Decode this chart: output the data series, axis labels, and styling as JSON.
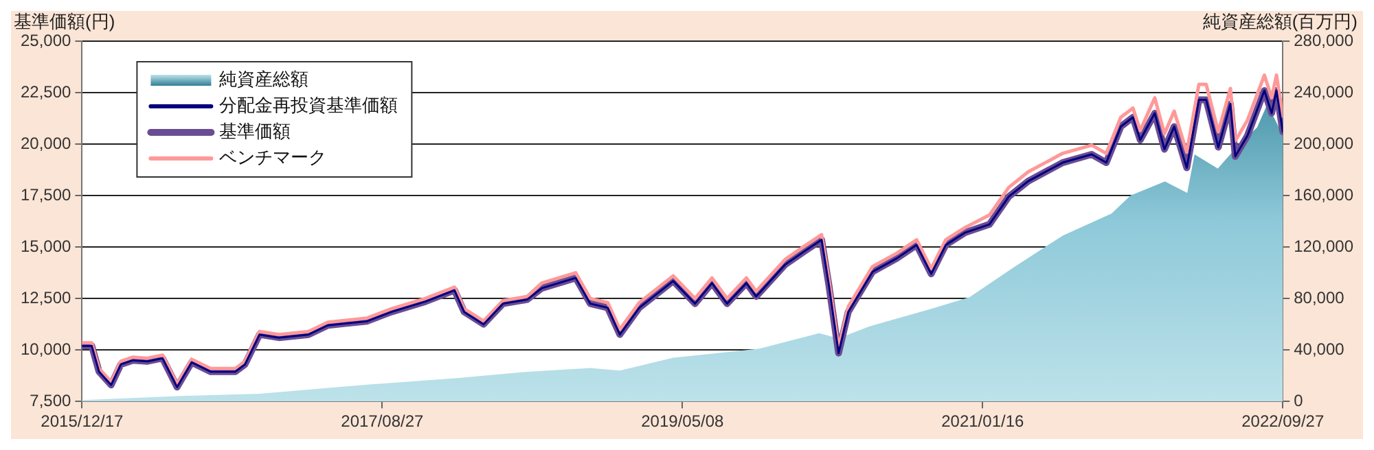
{
  "chart_data": {
    "type": "line",
    "ylabel": "基準価額(円)",
    "y2label": "純資産総額(百万円)",
    "xlim": [
      "2015-12-17",
      "2022-09-27"
    ],
    "xticks": [
      {
        "value": "2015-12-17",
        "label": "2015/12/17"
      },
      {
        "value": "2017-08-27",
        "label": "2017/08/27"
      },
      {
        "value": "2019-05-08",
        "label": "2019/05/08"
      },
      {
        "value": "2021-01-16",
        "label": "2021/01/16"
      },
      {
        "value": "2022-09-27",
        "label": "2022/09/27"
      }
    ],
    "ylim": [
      7500,
      25000
    ],
    "yticks": [
      {
        "value": 7500,
        "label": "7,500"
      },
      {
        "value": 10000,
        "label": "10,000"
      },
      {
        "value": 12500,
        "label": "12,500"
      },
      {
        "value": 15000,
        "label": "15,000"
      },
      {
        "value": 17500,
        "label": "17,500"
      },
      {
        "value": 20000,
        "label": "20,000"
      },
      {
        "value": 22500,
        "label": "22,500"
      },
      {
        "value": 25000,
        "label": "25,000"
      }
    ],
    "y2lim": [
      0,
      280000
    ],
    "y2ticks": [
      0,
      {
        "value": 40000,
        "label": "40,000"
      },
      {
        "value": 80000,
        "label": "80,000"
      },
      {
        "value": 120000,
        "label": "120,000"
      },
      {
        "value": 160000,
        "label": "160,000"
      },
      {
        "value": 200000,
        "label": "200,000"
      },
      {
        "value": 240000,
        "label": "240,000"
      },
      {
        "value": 280000,
        "label": "280,000"
      }
    ],
    "grid": "y",
    "legend": "top left",
    "series": [
      {
        "name": "純資産総額",
        "type": "area",
        "axis": "y2",
        "color": "#8ec9d9",
        "x": [
          "2015-12-17",
          "2016-06-21",
          "2016-12-17",
          "2017-07-27",
          "2018-01-23",
          "2018-06-22",
          "2018-10-30",
          "2018-12-30",
          "2019-04-19",
          "2019-10-14",
          "2020-02-14",
          "2020-03-25",
          "2020-05-25",
          "2020-10-02",
          "2020-12-20",
          "2021-03-20",
          "2021-07-01",
          "2021-10-09",
          "2021-11-17",
          "2022-01-27",
          "2022-03-14",
          "2022-03-29",
          "2022-05-16",
          "2022-06-27",
          "2022-08-05",
          "2022-08-26",
          "2022-09-19",
          "2022-09-27"
        ],
        "values": [
          1000,
          4000,
          6000,
          13000,
          18000,
          23000,
          26000,
          24000,
          34000,
          41000,
          53000,
          49000,
          58000,
          72000,
          81000,
          104000,
          129000,
          146000,
          160000,
          171000,
          162000,
          192000,
          181000,
          199000,
          213000,
          231000,
          213000,
          206000
        ]
      },
      {
        "name": "分配金再投資基準価額",
        "color": "#00007f",
        "values": [
          10200,
          10200,
          8950,
          8300,
          9300,
          9500,
          9450,
          9600,
          8200,
          9400,
          8950,
          8950,
          9300,
          10750,
          10600,
          10750,
          11200,
          11400,
          11850,
          12350,
          12900,
          11850,
          11250,
          12250,
          12450,
          13000,
          13500,
          12250,
          12050,
          10750,
          12050,
          13350,
          12250,
          13250,
          12250,
          13250,
          12600,
          14150,
          14800,
          15350,
          13150,
          9850,
          11850,
          13800,
          14450,
          15100,
          13700,
          15100,
          15700,
          16100,
          17450,
          18200,
          19100,
          19500,
          19100,
          20850,
          21300,
          20200,
          21500,
          19750,
          20850,
          18850,
          22150,
          22150,
          19850,
          21950,
          19400,
          20400,
          22600,
          21500,
          22600,
          20600
        ]
      },
      {
        "name": "基準価額",
        "color": "#6a4c93",
        "values": [
          10200,
          10200,
          8950,
          8300,
          9300,
          9500,
          9450,
          9600,
          8200,
          9400,
          8950,
          8950,
          9300,
          10750,
          10600,
          10750,
          11200,
          11400,
          11850,
          12350,
          12900,
          11850,
          11250,
          12250,
          12450,
          13000,
          13500,
          12250,
          12050,
          10750,
          12050,
          13350,
          12250,
          13250,
          12250,
          13250,
          12600,
          14150,
          14800,
          15350,
          13150,
          9850,
          11850,
          13800,
          14450,
          15100,
          13700,
          15100,
          15700,
          16100,
          17450,
          18200,
          19100,
          19500,
          19100,
          20850,
          21300,
          20200,
          21500,
          19750,
          20850,
          18850,
          22150,
          22150,
          19850,
          21950,
          19400,
          20400,
          22600,
          21500,
          22600,
          20600
        ]
      },
      {
        "name": "ベンチマーク",
        "color": "#ff9999",
        "values": [
          10350,
          10350,
          9100,
          8450,
          9450,
          9650,
          9600,
          9750,
          8350,
          9550,
          9100,
          9100,
          9450,
          10900,
          10750,
          10900,
          11350,
          11550,
          12000,
          12500,
          13050,
          12000,
          11400,
          12400,
          12600,
          13250,
          13750,
          12500,
          12300,
          11000,
          12300,
          13600,
          12500,
          13500,
          12500,
          13500,
          12850,
          14400,
          15050,
          15600,
          13400,
          10100,
          12100,
          14050,
          14700,
          15350,
          13950,
          15350,
          15950,
          16550,
          17900,
          18650,
          19550,
          19950,
          19550,
          21300,
          21750,
          20650,
          22250,
          20500,
          21600,
          19600,
          22900,
          22900,
          20600,
          22700,
          20150,
          21150,
          23350,
          22250,
          23350,
          21350
        ]
      }
    ],
    "x": [
      "2015-12-17",
      "2016-01-06",
      "2016-01-21",
      "2016-02-15",
      "2016-03-06",
      "2016-03-31",
      "2016-04-30",
      "2016-05-31",
      "2016-06-30",
      "2016-07-30",
      "2016-09-07",
      "2016-10-28",
      "2016-11-17",
      "2016-12-17",
      "2017-01-26",
      "2017-03-28",
      "2017-05-07",
      "2017-07-27",
      "2017-09-15",
      "2017-11-24",
      "2018-01-23",
      "2018-02-12",
      "2018-03-24",
      "2018-05-03",
      "2018-06-22",
      "2018-07-22",
      "2018-09-30",
      "2018-10-30",
      "2018-12-05",
      "2018-12-30",
      "2019-02-08",
      "2019-04-19",
      "2019-06-03",
      "2019-07-08",
      "2019-08-08",
      "2019-09-17",
      "2019-10-07",
      "2019-12-06",
      "2020-01-15",
      "2020-02-19",
      "2020-03-05",
      "2020-03-25",
      "2020-04-14",
      "2020-06-03",
      "2020-07-23",
      "2020-09-02",
      "2020-10-02",
      "2020-11-01",
      "2020-12-11",
      "2021-01-30",
      "2021-03-11",
      "2021-04-20",
      "2021-06-30",
      "2021-08-29",
      "2021-09-28",
      "2021-10-28",
      "2021-11-22",
      "2021-12-07",
      "2022-01-06",
      "2022-01-26",
      "2022-02-15",
      "2022-03-13",
      "2022-04-07",
      "2022-04-22",
      "2022-05-17",
      "2022-06-11",
      "2022-06-21",
      "2022-07-16",
      "2022-08-20",
      "2022-09-04",
      "2022-09-14",
      "2022-09-27"
    ]
  }
}
